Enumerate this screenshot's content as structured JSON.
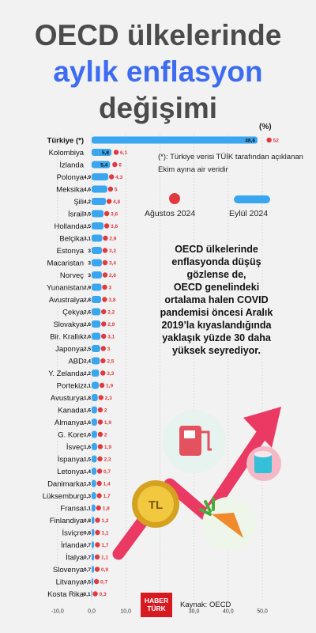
{
  "title": {
    "line1": "OECD ülkelerinde",
    "line2": "aylık enflasyon",
    "line3": "değişimi"
  },
  "unit_label": "(%)",
  "note": "(*): Türkiye verisi TÜİK tarafından açıklanan Ekim ayına air veridir",
  "legend": {
    "august": "Ağustos 2024",
    "september": "Eylül 2024"
  },
  "callout": [
    "OECD ülkelerinde",
    "enflasyonda düşüş",
    "gözlense de,",
    "OECD genelindeki",
    "ortalama halen COVID",
    "pandemisi öncesi Aralık",
    "2019’la kıyaslandığında",
    "yaklaşık yüzde 30 daha",
    "yüksek seyrediyor."
  ],
  "logo": {
    "line1": "HABER",
    "line2": "TÜRK"
  },
  "source": "Kaynak: OECD",
  "colors": {
    "bar": "#3aa6ef",
    "dot": "#e03a3e",
    "title_accent": "#3d6cf2",
    "title": "#4b4b4b"
  },
  "chart_data": {
    "type": "bar",
    "orientation": "horizontal",
    "xlim": [
      -10,
      50
    ],
    "xticks": [
      "-10,0",
      "0,0",
      "10,0",
      "20,0",
      "30,0",
      "40,0",
      "50,0"
    ],
    "series": [
      {
        "name": "Eylül 2024",
        "marker": "bar"
      },
      {
        "name": "Ağustos 2024",
        "marker": "dot"
      }
    ],
    "rows": [
      {
        "country": "Türkiye (*)",
        "sep": 48.6,
        "sep_label": "48,6",
        "aug": 52,
        "aug_label": "52",
        "bold": true
      },
      {
        "country": "Kolombiya",
        "sep": 5.8,
        "sep_label": "5,8",
        "aug": 6.1,
        "aug_label": "6,1"
      },
      {
        "country": "İzlanda",
        "sep": 5.4,
        "sep_label": "5,4",
        "aug": 6,
        "aug_label": "6"
      },
      {
        "country": "Polonya",
        "sep": 4.9,
        "sep_label": "4,9",
        "aug": 4.3,
        "aug_label": "4,3"
      },
      {
        "country": "Meksika",
        "sep": 4.6,
        "sep_label": "4,6",
        "aug": 5,
        "aug_label": "5"
      },
      {
        "country": "Şili",
        "sep": 4.2,
        "sep_label": "4,2",
        "aug": 4.8,
        "aug_label": "4,8"
      },
      {
        "country": "İsrail",
        "sep": 3.5,
        "sep_label": "3,5",
        "aug": 3.6,
        "aug_label": "3,6"
      },
      {
        "country": "Hollanda",
        "sep": 3.5,
        "sep_label": "3,5",
        "aug": 3.6,
        "aug_label": "3,6"
      },
      {
        "country": "Belçika",
        "sep": 3.1,
        "sep_label": "3,1",
        "aug": 2.9,
        "aug_label": "2,9"
      },
      {
        "country": "Estonya",
        "sep": 3,
        "sep_label": "3",
        "aug": 3.2,
        "aug_label": "3,2"
      },
      {
        "country": "Macaristan",
        "sep": 3,
        "sep_label": "3",
        "aug": 3.4,
        "aug_label": "3,4"
      },
      {
        "country": "Norveç",
        "sep": 3,
        "sep_label": "3",
        "aug": 2.6,
        "aug_label": "2,6"
      },
      {
        "country": "Yunanistan",
        "sep": 2.9,
        "sep_label": "2,9",
        "aug": 3,
        "aug_label": "3"
      },
      {
        "country": "Avustralya",
        "sep": 2.8,
        "sep_label": "2,8",
        "aug": 3.8,
        "aug_label": "3,8"
      },
      {
        "country": "Çekya",
        "sep": 2.6,
        "sep_label": "2,6",
        "aug": 2.2,
        "aug_label": "2,2"
      },
      {
        "country": "Slovakya",
        "sep": 2.6,
        "sep_label": "2,6",
        "aug": 2.9,
        "aug_label": "2,9"
      },
      {
        "country": "Bir. Krallık",
        "sep": 2.6,
        "sep_label": "2,6",
        "aug": 3.1,
        "aug_label": "3,1"
      },
      {
        "country": "Japonya",
        "sep": 2.5,
        "sep_label": "2,5",
        "aug": 3,
        "aug_label": "3"
      },
      {
        "country": "ABD",
        "sep": 2.4,
        "sep_label": "2,4",
        "aug": 2.5,
        "aug_label": "2,5"
      },
      {
        "country": "Y. Zelanda",
        "sep": 2.2,
        "sep_label": "2,2",
        "aug": 3.3,
        "aug_label": "3,3"
      },
      {
        "country": "Portekiz",
        "sep": 2.1,
        "sep_label": "2,1",
        "aug": 1.9,
        "aug_label": "1,9"
      },
      {
        "country": "Avusturya",
        "sep": 1.8,
        "sep_label": "1,8",
        "aug": 2.3,
        "aug_label": "2,3"
      },
      {
        "country": "Kanada",
        "sep": 1.6,
        "sep_label": "1,6",
        "aug": 2,
        "aug_label": "2"
      },
      {
        "country": "Almanya",
        "sep": 1.6,
        "sep_label": "1,6",
        "aug": 1.9,
        "aug_label": "1,9"
      },
      {
        "country": "G. Kore",
        "sep": 1.6,
        "sep_label": "1,6",
        "aug": 2,
        "aug_label": "2"
      },
      {
        "country": "İsveç",
        "sep": 1.6,
        "sep_label": "1,6",
        "aug": 1.9,
        "aug_label": "1,9"
      },
      {
        "country": "İspanya",
        "sep": 1.5,
        "sep_label": "1,5",
        "aug": 2.3,
        "aug_label": "2,3"
      },
      {
        "country": "Letonya",
        "sep": 1.4,
        "sep_label": "1,4",
        "aug": 0.7,
        "aug_label": "0,7"
      },
      {
        "country": "Danimarka",
        "sep": 1.3,
        "sep_label": "1,3",
        "aug": 1.4,
        "aug_label": "1,4"
      },
      {
        "country": "Lüksemburg",
        "sep": 1.3,
        "sep_label": "1,3",
        "aug": 1.7,
        "aug_label": "1,7"
      },
      {
        "country": "Fransa",
        "sep": 1.1,
        "sep_label": "1,1",
        "aug": 1.8,
        "aug_label": "1,8"
      },
      {
        "country": "Finlandiya",
        "sep": 0.8,
        "sep_label": "0,8",
        "aug": 1.2,
        "aug_label": "1,2"
      },
      {
        "country": "İsviçre",
        "sep": 0.8,
        "sep_label": "0,8",
        "aug": 1.1,
        "aug_label": "1,1"
      },
      {
        "country": "İrlanda",
        "sep": 0.7,
        "sep_label": "0,7",
        "aug": 1.7,
        "aug_label": "1,7"
      },
      {
        "country": "İtalya",
        "sep": 0.7,
        "sep_label": "0,7",
        "aug": 1.1,
        "aug_label": "1,1"
      },
      {
        "country": "Slovenya",
        "sep": 0.7,
        "sep_label": "0,7",
        "aug": 0.9,
        "aug_label": "0,9"
      },
      {
        "country": "Litvanya",
        "sep": 0.5,
        "sep_label": "0,5",
        "aug": 0.7,
        "aug_label": "0,7"
      },
      {
        "country": "Kosta Rika",
        "sep": -0.1,
        "sep_label": "-0,1",
        "aug": 0.3,
        "aug_label": "0,3"
      }
    ]
  }
}
